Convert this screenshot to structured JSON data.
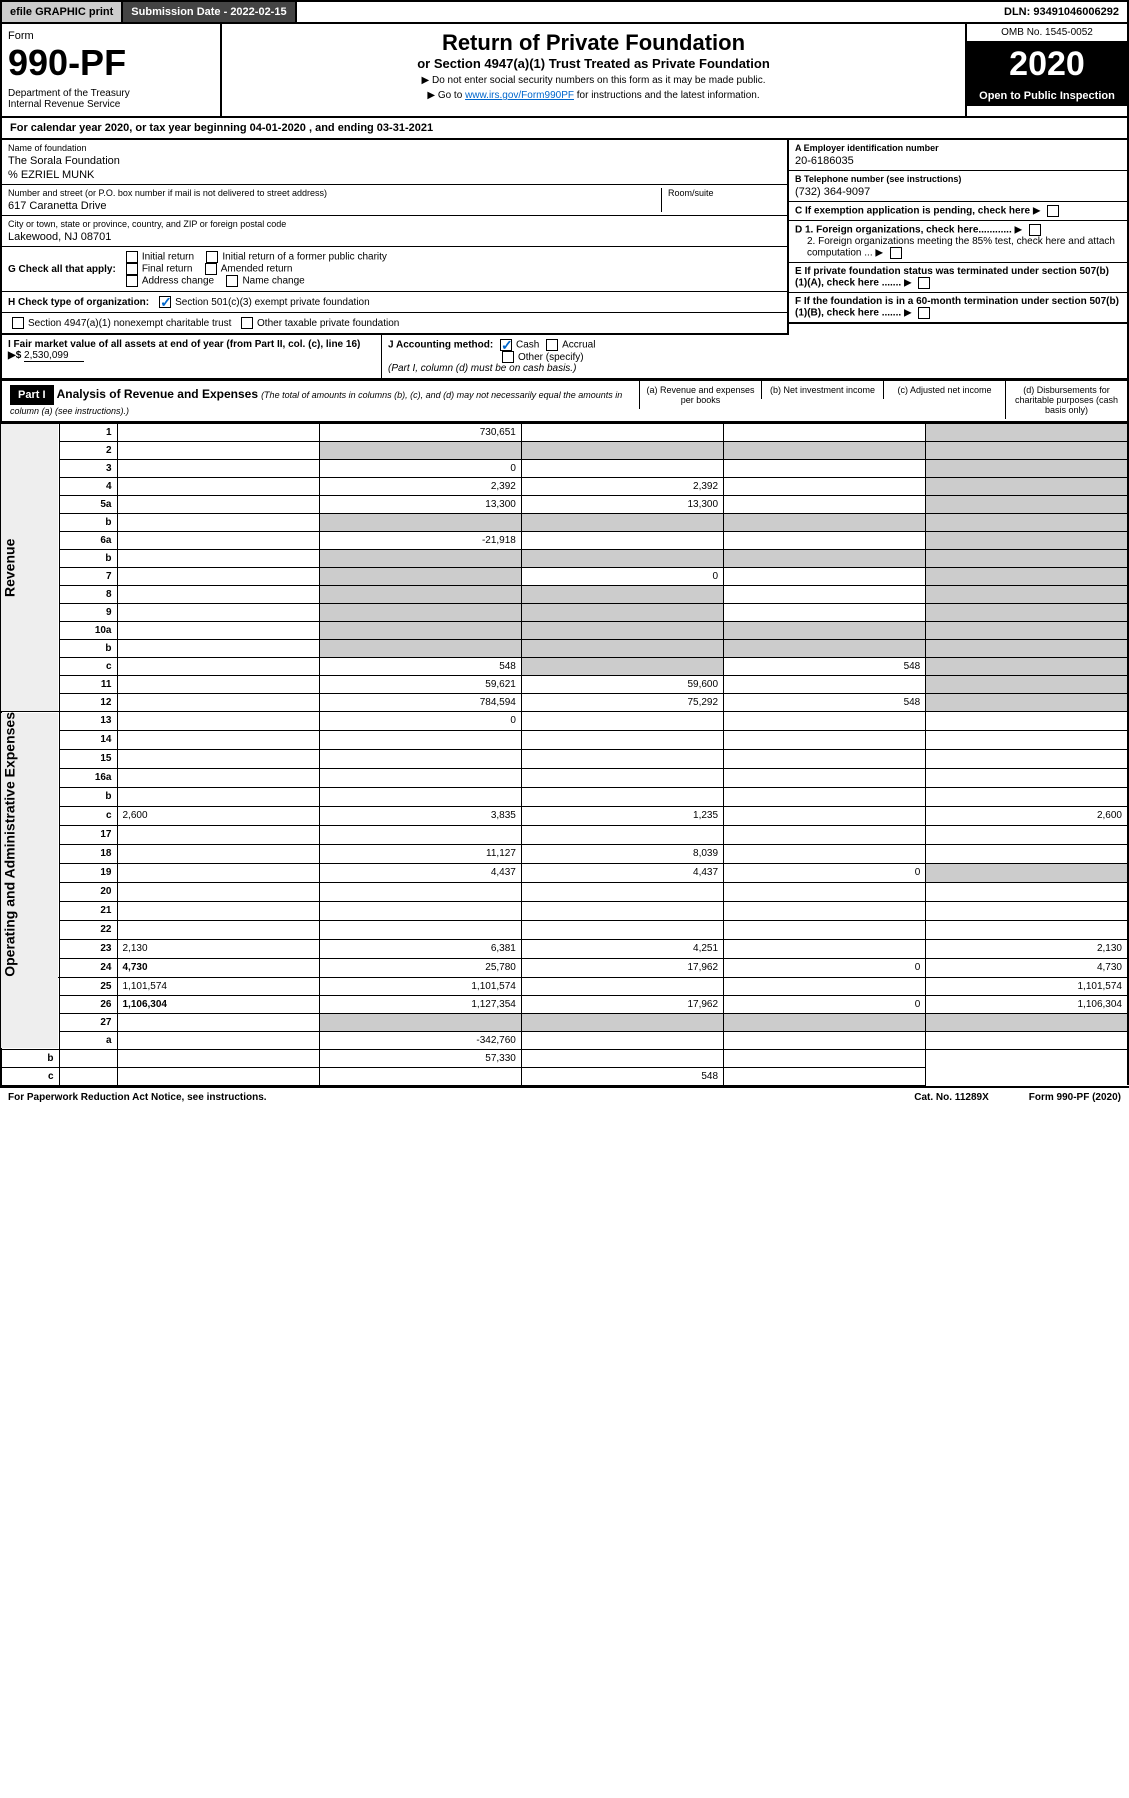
{
  "topbar": {
    "efile": "efile GRAPHIC print",
    "subdate_lbl": "Submission Date - 2022-02-15",
    "dln": "DLN: 93491046006292"
  },
  "header": {
    "form_lbl": "Form",
    "form_no": "990-PF",
    "dept": "Department of the Treasury\nInternal Revenue Service",
    "title1": "Return of Private Foundation",
    "title2": "or Section 4947(a)(1) Trust Treated as Private Foundation",
    "note1": "▶ Do not enter social security numbers on this form as it may be made public.",
    "note2_pre": "▶ Go to ",
    "note2_link": "www.irs.gov/Form990PF",
    "note2_post": " for instructions and the latest information.",
    "omb": "OMB No. 1545-0052",
    "year": "2020",
    "open": "Open to Public Inspection"
  },
  "cal_year": "For calendar year 2020, or tax year beginning 04-01-2020                                    , and ending 03-31-2021",
  "id": {
    "name_lbl": "Name of foundation",
    "name": "The Sorala Foundation",
    "pct": "% EZRIEL MUNK",
    "addr_lbl": "Number and street (or P.O. box number if mail is not delivered to street address)",
    "addr": "617 Caranetta Drive",
    "room_lbl": "Room/suite",
    "city_lbl": "City or town, state or province, country, and ZIP or foreign postal code",
    "city": "Lakewood, NJ  08701",
    "ein_lbl": "A Employer identification number",
    "ein": "20-6186035",
    "tel_lbl": "B Telephone number (see instructions)",
    "tel": "(732) 364-9097",
    "c_lbl": "C If exemption application is pending, check here",
    "d1": "D 1. Foreign organizations, check here............",
    "d2": "2. Foreign organizations meeting the 85% test, check here and attach computation ...",
    "e_lbl": "E If private foundation status was terminated under section 507(b)(1)(A), check here .......",
    "f_lbl": "F If the foundation is in a 60-month termination under section 507(b)(1)(B), check here ......."
  },
  "g": {
    "lbl": "G Check all that apply:",
    "opts": [
      "Initial return",
      "Initial return of a former public charity",
      "Final return",
      "Amended return",
      "Address change",
      "Name change"
    ]
  },
  "h": {
    "lbl": "H Check type of organization:",
    "o1": "Section 501(c)(3) exempt private foundation",
    "o2": "Section 4947(a)(1) nonexempt charitable trust",
    "o3": "Other taxable private foundation"
  },
  "i": {
    "lbl": "I Fair market value of all assets at end of year (from Part II, col. (c), line 16) ▶$ ",
    "val": "2,530,099"
  },
  "j": {
    "lbl": "J Accounting method:",
    "cash": "Cash",
    "accrual": "Accrual",
    "other": "Other (specify)",
    "note": "(Part I, column (d) must be on cash basis.)"
  },
  "part1": {
    "hdr": "Part I",
    "title": "Analysis of Revenue and Expenses",
    "sub": "(The total of amounts in columns (b), (c), and (d) may not necessarily equal the amounts in column (a) (see instructions).)",
    "cols": {
      "a": "(a) Revenue and expenses per books",
      "b": "(b) Net investment income",
      "c": "(c) Adjusted net income",
      "d": "(d) Disbursements for charitable purposes (cash basis only)"
    }
  },
  "vlabels": {
    "rev": "Revenue",
    "exp": "Operating and Administrative Expenses"
  },
  "rows": [
    {
      "n": "1",
      "d": "",
      "a": "730,651",
      "b": "",
      "c": ""
    },
    {
      "n": "2",
      "d": "",
      "a": "",
      "b": "",
      "c": ""
    },
    {
      "n": "3",
      "d": "",
      "a": "0",
      "b": "",
      "c": ""
    },
    {
      "n": "4",
      "d": "",
      "a": "2,392",
      "b": "2,392",
      "c": ""
    },
    {
      "n": "5a",
      "d": "",
      "a": "13,300",
      "b": "13,300",
      "c": ""
    },
    {
      "n": "b",
      "d": "",
      "a": "",
      "b": "",
      "c": ""
    },
    {
      "n": "6a",
      "d": "",
      "a": "-21,918",
      "b": "",
      "c": ""
    },
    {
      "n": "b",
      "d": "",
      "a": "",
      "b": "",
      "c": ""
    },
    {
      "n": "7",
      "d": "",
      "a": "",
      "b": "0",
      "c": ""
    },
    {
      "n": "8",
      "d": "",
      "a": "",
      "b": "",
      "c": ""
    },
    {
      "n": "9",
      "d": "",
      "a": "",
      "b": "",
      "c": ""
    },
    {
      "n": "10a",
      "d": "",
      "a": "",
      "b": "",
      "c": ""
    },
    {
      "n": "b",
      "d": "",
      "a": "",
      "b": "",
      "c": ""
    },
    {
      "n": "c",
      "d": "",
      "a": "548",
      "b": "",
      "c": "548"
    },
    {
      "n": "11",
      "d": "",
      "a": "59,621",
      "b": "59,600",
      "c": ""
    },
    {
      "n": "12",
      "d": "",
      "a": "784,594",
      "b": "75,292",
      "c": "548",
      "bold": true
    },
    {
      "n": "13",
      "d": "",
      "a": "0",
      "b": "",
      "c": ""
    },
    {
      "n": "14",
      "d": "",
      "a": "",
      "b": "",
      "c": ""
    },
    {
      "n": "15",
      "d": "",
      "a": "",
      "b": "",
      "c": ""
    },
    {
      "n": "16a",
      "d": "",
      "a": "",
      "b": "",
      "c": ""
    },
    {
      "n": "b",
      "d": "",
      "a": "",
      "b": "",
      "c": ""
    },
    {
      "n": "c",
      "d": "2,600",
      "a": "3,835",
      "b": "1,235",
      "c": ""
    },
    {
      "n": "17",
      "d": "",
      "a": "",
      "b": "",
      "c": ""
    },
    {
      "n": "18",
      "d": "",
      "a": "11,127",
      "b": "8,039",
      "c": ""
    },
    {
      "n": "19",
      "d": "",
      "a": "4,437",
      "b": "4,437",
      "c": "0"
    },
    {
      "n": "20",
      "d": "",
      "a": "",
      "b": "",
      "c": ""
    },
    {
      "n": "21",
      "d": "",
      "a": "",
      "b": "",
      "c": ""
    },
    {
      "n": "22",
      "d": "",
      "a": "",
      "b": "",
      "c": ""
    },
    {
      "n": "23",
      "d": "2,130",
      "a": "6,381",
      "b": "4,251",
      "c": ""
    },
    {
      "n": "24",
      "d": "4,730",
      "a": "25,780",
      "b": "17,962",
      "c": "0",
      "bold": true
    },
    {
      "n": "25",
      "d": "1,101,574",
      "a": "1,101,574",
      "b": "",
      "c": ""
    },
    {
      "n": "26",
      "d": "1,106,304",
      "a": "1,127,354",
      "b": "17,962",
      "c": "0",
      "bold": true
    },
    {
      "n": "27",
      "d": "",
      "a": "",
      "b": "",
      "c": ""
    },
    {
      "n": "a",
      "d": "",
      "a": "-342,760",
      "b": "",
      "c": "",
      "bold": true
    },
    {
      "n": "b",
      "d": "",
      "a": "",
      "b": "57,330",
      "c": "",
      "bold": true
    },
    {
      "n": "c",
      "d": "",
      "a": "",
      "b": "",
      "c": "548",
      "bold": true
    }
  ],
  "shade_map": {
    "1": [
      "d"
    ],
    "2": [
      "a",
      "b",
      "c",
      "d"
    ],
    "3": [
      "d"
    ],
    "4": [
      "d"
    ],
    "5a": [
      "d"
    ],
    "b_5": [
      "a",
      "b",
      "c",
      "d"
    ],
    "6a": [
      "d"
    ],
    "b_6": [
      "a",
      "b",
      "c",
      "d"
    ],
    "7": [
      "a",
      "d"
    ],
    "8": [
      "a",
      "b",
      "d"
    ],
    "9": [
      "a",
      "b",
      "d"
    ],
    "10a": [
      "a",
      "b",
      "c",
      "d"
    ],
    "b_10": [
      "a",
      "b",
      "c",
      "d"
    ],
    "c_10": [
      "b",
      "d"
    ],
    "11": [
      "d"
    ],
    "12": [
      "d"
    ],
    "19": [
      "d"
    ],
    "27": [
      "a",
      "b",
      "c",
      "d"
    ],
    "a_27": [
      "b",
      "c",
      "d"
    ],
    "b_27": [
      "a",
      "c",
      "d"
    ],
    "c_27": [
      "a",
      "b",
      "d"
    ]
  },
  "footer": {
    "left": "For Paperwork Reduction Act Notice, see instructions.",
    "mid": "Cat. No. 11289X",
    "right": "Form 990-PF (2020)"
  }
}
